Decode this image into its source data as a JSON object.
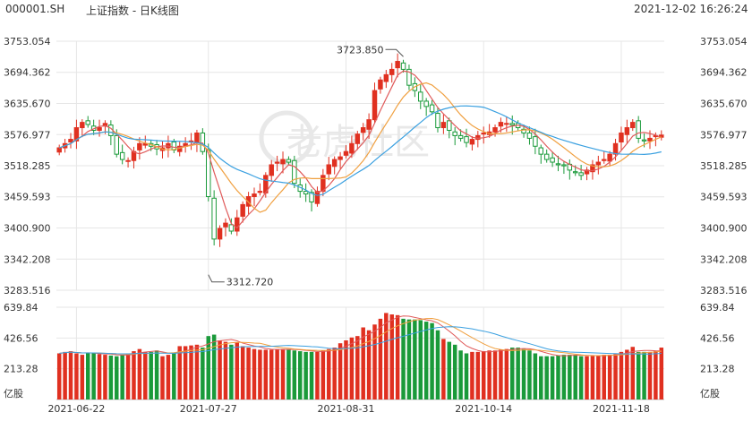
{
  "header": {
    "symbol": "000001.SH",
    "title": "上证指数 - 日K线图",
    "datetime": "2021-12-02 16:26:24"
  },
  "watermark": "老虎社区",
  "colors": {
    "up": "#e03020",
    "down": "#1a9a3a",
    "grid": "#e6e6e6",
    "ma5": "#e05a5a",
    "ma10": "#f0a040",
    "ma20": "#3aa0e0"
  },
  "chart_data": {
    "type": "candlestick",
    "price_axis": {
      "range": [
        3283.516,
        3753.054
      ],
      "ticks": [
        "3753.054",
        "3694.362",
        "3635.670",
        "3576.977",
        "3518.285",
        "3459.593",
        "3400.900",
        "3342.208",
        "3283.516"
      ]
    },
    "volume_axis": {
      "range": [
        0,
        639.84
      ],
      "ticks": [
        "639.84",
        "426.56",
        "213.28"
      ],
      "unit": "亿股"
    },
    "x_tick_labels": [
      "2021-06-22",
      "2021-07-27",
      "2021-08-31",
      "2021-10-14",
      "2021-11-18"
    ],
    "x_tick_index": [
      3,
      26,
      50,
      74,
      98
    ],
    "annotations": [
      {
        "text": "3723.850",
        "index": 60,
        "value": 3723.85
      },
      {
        "text": "3312.720",
        "index": 26,
        "value": 3312.72
      }
    ],
    "close": [
      3552,
      3560,
      3568,
      3590,
      3600,
      3596,
      3585,
      3590,
      3598,
      3575,
      3540,
      3530,
      3528,
      3545,
      3560,
      3560,
      3555,
      3550,
      3552,
      3560,
      3548,
      3555,
      3560,
      3565,
      3580,
      3545,
      3460,
      3380,
      3400,
      3410,
      3395,
      3420,
      3445,
      3460,
      3465,
      3470,
      3500,
      3520,
      3525,
      3530,
      3525,
      3485,
      3470,
      3465,
      3450,
      3470,
      3500,
      3520,
      3530,
      3535,
      3545,
      3560,
      3578,
      3590,
      3605,
      3660,
      3680,
      3690,
      3700,
      3715,
      3700,
      3670,
      3660,
      3640,
      3630,
      3620,
      3590,
      3600,
      3585,
      3575,
      3570,
      3562,
      3568,
      3575,
      3580,
      3582,
      3590,
      3600,
      3598,
      3595,
      3590,
      3580,
      3570,
      3555,
      3540,
      3530,
      3525,
      3520,
      3518,
      3510,
      3505,
      3500,
      3510,
      3520,
      3525,
      3530,
      3540,
      3560,
      3580,
      3590,
      3600,
      3570,
      3565,
      3570,
      3575,
      3576
    ],
    "volume": [
      320,
      330,
      335,
      320,
      310,
      325,
      320,
      315,
      310,
      305,
      300,
      310,
      320,
      335,
      350,
      330,
      330,
      340,
      300,
      310,
      320,
      370,
      370,
      375,
      380,
      360,
      440,
      450,
      410,
      400,
      380,
      395,
      370,
      360,
      350,
      345,
      345,
      345,
      350,
      350,
      350,
      340,
      335,
      330,
      330,
      330,
      340,
      350,
      360,
      390,
      410,
      430,
      440,
      500,
      480,
      520,
      560,
      600,
      590,
      585,
      560,
      555,
      555,
      550,
      540,
      530,
      480,
      420,
      400,
      380,
      340,
      320,
      330,
      330,
      335,
      340,
      340,
      345,
      350,
      360,
      360,
      350,
      340,
      320,
      300,
      300,
      300,
      305,
      310,
      310,
      310,
      300,
      300,
      305,
      305,
      310,
      310,
      315,
      330,
      345,
      365,
      330,
      330,
      330,
      335,
      360
    ]
  },
  "axis_unit_left": "亿股",
  "axis_unit_right": "亿股"
}
